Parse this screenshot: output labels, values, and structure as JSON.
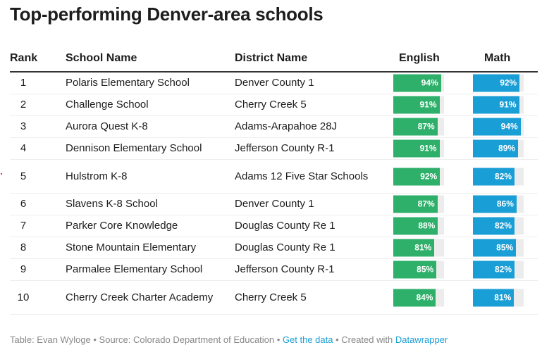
{
  "title": "Top-performing Denver-area schools",
  "colors": {
    "english": "#2eaf6a",
    "math": "#1a9ed6",
    "track": "#ececec"
  },
  "columns": [
    "Rank",
    "School Name",
    "District Name",
    "English",
    "Math"
  ],
  "chart_data": {
    "type": "table",
    "title": "Top-performing Denver-area schools",
    "columns": [
      "Rank",
      "School Name",
      "District Name",
      "English",
      "Math"
    ],
    "rows": [
      {
        "rank": "1",
        "school": "Polaris Elementary School",
        "district": "Denver County 1",
        "english": 94,
        "math": 92,
        "english_label": "94%",
        "math_label": "92%"
      },
      {
        "rank": "2",
        "school": "Challenge School",
        "district": "Cherry Creek 5",
        "english": 91,
        "math": 91,
        "english_label": "91%",
        "math_label": "91%"
      },
      {
        "rank": "3",
        "school": "Aurora Quest K-8",
        "district": "Adams-Arapahoe 28J",
        "english": 87,
        "math": 94,
        "english_label": "87%",
        "math_label": "94%"
      },
      {
        "rank": "4",
        "school": "Dennison Elementary School",
        "district": "Jefferson County R-1",
        "english": 91,
        "math": 89,
        "english_label": "91%",
        "math_label": "89%"
      },
      {
        "rank": "5",
        "school": "Hulstrom K-8",
        "district": "Adams 12 Five Star Schools",
        "english": 92,
        "math": 82,
        "english_label": "92%",
        "math_label": "82%"
      },
      {
        "rank": "6",
        "school": "Slavens K-8 School",
        "district": "Denver County 1",
        "english": 87,
        "math": 86,
        "english_label": "87%",
        "math_label": "86%"
      },
      {
        "rank": "7",
        "school": "Parker Core Knowledge",
        "district": "Douglas County Re 1",
        "english": 88,
        "math": 82,
        "english_label": "88%",
        "math_label": "82%"
      },
      {
        "rank": "8",
        "school": "Stone Mountain Elementary",
        "district": "Douglas County Re 1",
        "english": 81,
        "math": 85,
        "english_label": "81%",
        "math_label": "85%"
      },
      {
        "rank": "9",
        "school": "Parmalee Elementary School",
        "district": "Jefferson County R-1",
        "english": 85,
        "math": 82,
        "english_label": "85%",
        "math_label": "82%"
      },
      {
        "rank": "10",
        "school": "Cherry Creek Charter Academy",
        "district": "Cherry Creek 5",
        "english": 84,
        "math": 81,
        "english_label": "84%",
        "math_label": "81%"
      }
    ],
    "bar_range": [
      0,
      100
    ]
  },
  "footer": {
    "prefix": "Table: Evan Wyloge • Source: Colorado Department of Education • ",
    "data_link": "Get the data",
    "mid": " • Created with ",
    "dw_link": "Datawrapper"
  }
}
